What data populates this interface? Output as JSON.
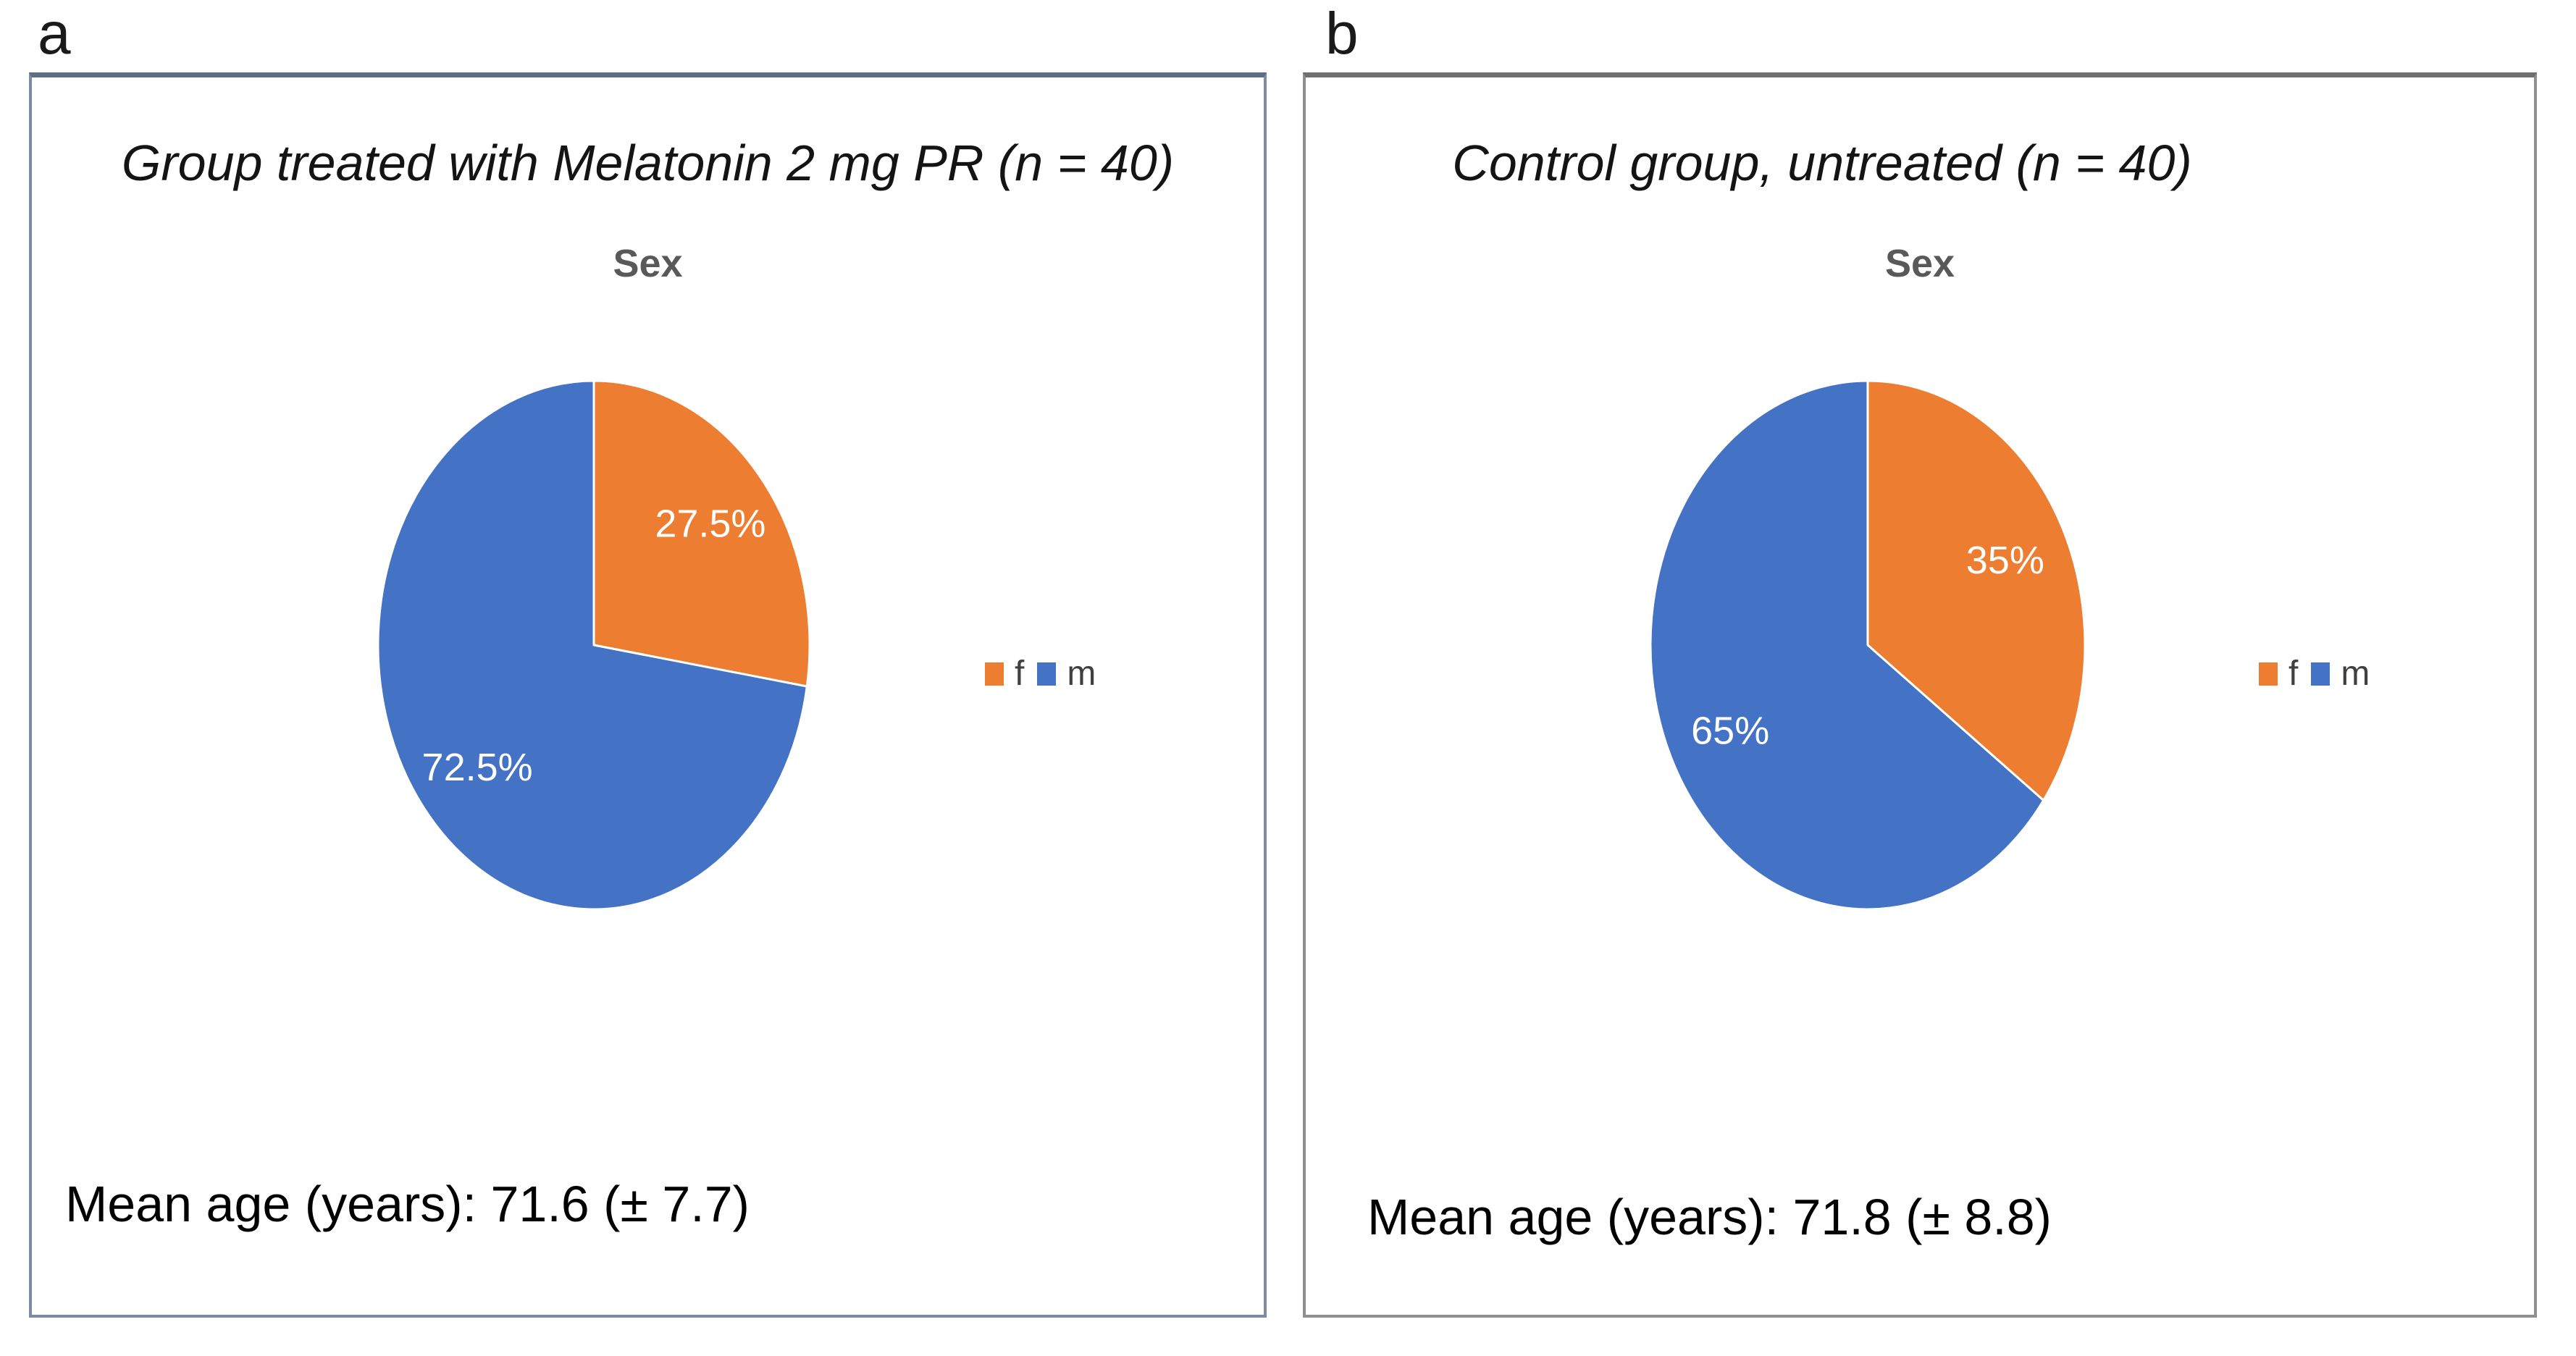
{
  "figure": {
    "panels": [
      {
        "label": "a",
        "title": "Group treated with Melatonin 2 mg PR (n = 40)",
        "mean_age": "Mean age (years): 71.6 (± 7.7)"
      },
      {
        "label": "b",
        "title": "Control group, untreated (n = 40)",
        "mean_age": "Mean age (years): 71.8 (± 8.8)"
      }
    ]
  },
  "colors": {
    "female": "#ED7D31",
    "male": "#4472C4",
    "slice_label_text": "#FFFFFF",
    "chart_title_text": "#595959",
    "legend_text": "#404040",
    "panel_a_border": "#7E8BA4",
    "panel_b_border": "#8F8F8F"
  },
  "chart_data": [
    {
      "type": "pie",
      "title": "Sex",
      "slices": [
        {
          "name": "f",
          "value": 27.5,
          "label": "27.5%",
          "color": "#ED7D31"
        },
        {
          "name": "m",
          "value": 72.5,
          "label": "72.5%",
          "color": "#4472C4"
        }
      ],
      "legend": [
        "f",
        "m"
      ],
      "legend_position": "right",
      "start_angle_deg": 0,
      "direction": "clockwise"
    },
    {
      "type": "pie",
      "title": "Sex",
      "slices": [
        {
          "name": "f",
          "value": 35,
          "label": "35%",
          "color": "#ED7D31"
        },
        {
          "name": "m",
          "value": 65,
          "label": "65%",
          "color": "#4472C4"
        }
      ],
      "legend": [
        "f",
        "m"
      ],
      "legend_position": "right",
      "start_angle_deg": 0,
      "direction": "clockwise"
    }
  ]
}
